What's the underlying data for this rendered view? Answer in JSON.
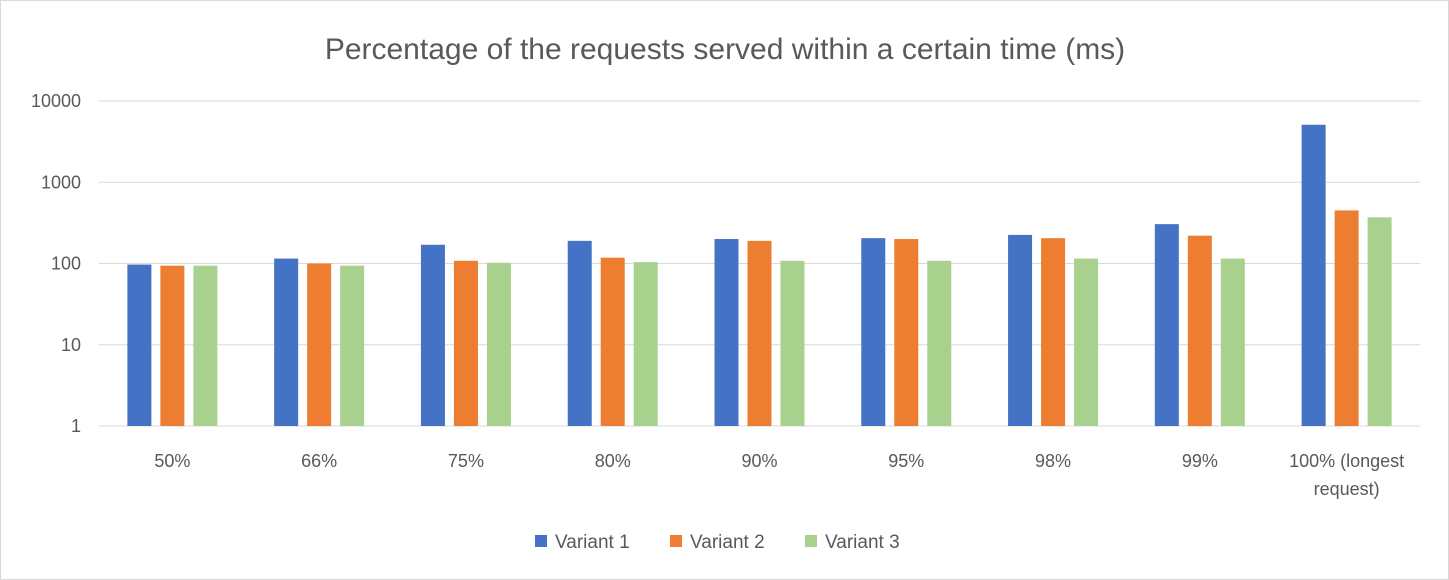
{
  "chart_data": {
    "type": "bar",
    "title": "Percentage of the requests served within a certain time (ms)",
    "xlabel": "",
    "ylabel": "",
    "yscale": "log",
    "ylim": [
      1,
      10000
    ],
    "yticks": [
      "1",
      "10",
      "100",
      "1000",
      "10000"
    ],
    "grid": true,
    "legend": "bottom",
    "categories": [
      "50%",
      "66%",
      "75%",
      "80%",
      "90%",
      "95%",
      "98%",
      "99%",
      "100% (longest request)"
    ],
    "category_lines": [
      [
        "50%"
      ],
      [
        "66%"
      ],
      [
        "75%"
      ],
      [
        "80%"
      ],
      [
        "90%"
      ],
      [
        "95%"
      ],
      [
        "98%"
      ],
      [
        "99%"
      ],
      [
        "100% (longest",
        "request)"
      ]
    ],
    "series": [
      {
        "name": "Variant 1",
        "color": "#4472C4",
        "values": [
          97,
          115,
          170,
          190,
          200,
          205,
          225,
          305,
          5100
        ]
      },
      {
        "name": "Variant 2",
        "color": "#ED7D31",
        "values": [
          94,
          100,
          108,
          118,
          190,
          200,
          205,
          220,
          450
        ]
      },
      {
        "name": "Variant 3",
        "color": "#A9D18E",
        "values": [
          94,
          94,
          102,
          104,
          108,
          108,
          115,
          115,
          370
        ]
      }
    ]
  }
}
